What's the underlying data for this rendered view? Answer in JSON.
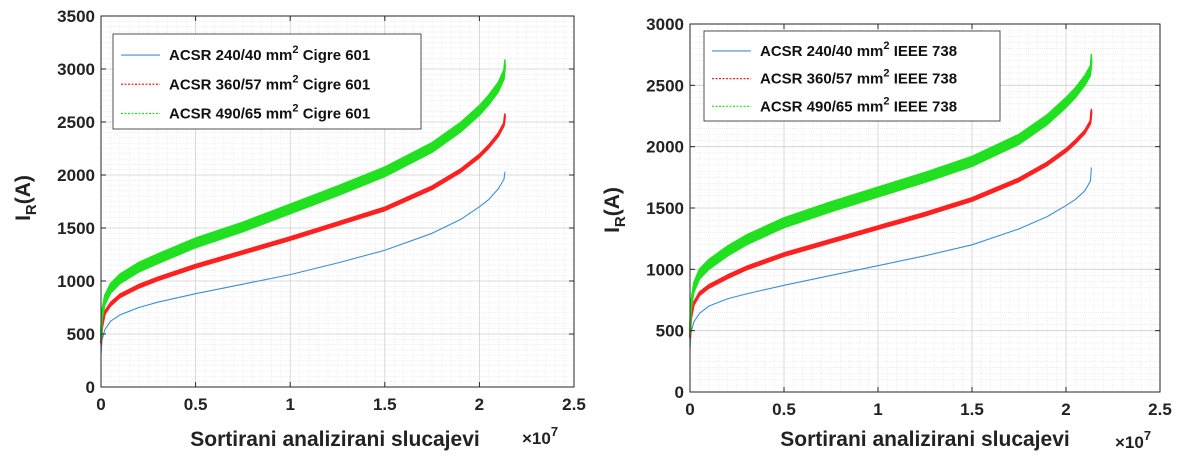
{
  "chart_data": [
    {
      "type": "line",
      "title": "",
      "xlabel": "Sortirani analizirani slucajevi",
      "ylabel": {
        "base": "I",
        "sub": "R",
        "rest": "(A)"
      },
      "x_multiplier": {
        "times": "×",
        "base": "10",
        "exp": "7"
      },
      "xlim": [
        0,
        2.5
      ],
      "ylim": [
        0,
        3500
      ],
      "xticks": [
        0,
        0.5,
        1,
        1.5,
        2,
        2.5
      ],
      "xtick_labels": [
        "0",
        "0.5",
        "1",
        "1.5",
        "2",
        "2.5"
      ],
      "yticks": [
        0,
        500,
        1000,
        1500,
        2000,
        2500,
        3000,
        3500
      ],
      "ytick_labels": [
        "0",
        "500",
        "1000",
        "1500",
        "2000",
        "2500",
        "3000",
        "3500"
      ],
      "grid": true,
      "legend_position": "top-left",
      "series": [
        {
          "name": "ACSR 240/40 mm2 Cigre 601",
          "legend": {
            "pre": "ACSR 240/40 mm",
            "sup": "2",
            "post": " Cigre 601"
          },
          "color": "#3a8fd9",
          "style": "solid",
          "band_width": 0,
          "x": [
            0,
            0.005,
            0.02,
            0.05,
            0.1,
            0.2,
            0.3,
            0.5,
            0.75,
            1.0,
            1.25,
            1.5,
            1.75,
            1.9,
            2.0,
            2.05,
            2.1,
            2.13,
            2.135
          ],
          "y": [
            300,
            440,
            540,
            620,
            680,
            750,
            800,
            880,
            970,
            1060,
            1170,
            1290,
            1450,
            1580,
            1700,
            1770,
            1870,
            1960,
            2030
          ]
        },
        {
          "name": "ACSR 360/57 mm2 Cigre 601",
          "legend": {
            "pre": "ACSR 360/57 mm",
            "sup": "2",
            "post": " Cigre 601"
          },
          "color": "#ff2020",
          "style": "dotted",
          "band_width": 16,
          "x": [
            0,
            0.005,
            0.02,
            0.05,
            0.1,
            0.2,
            0.3,
            0.5,
            0.75,
            1.0,
            1.25,
            1.5,
            1.75,
            1.9,
            2.0,
            2.05,
            2.1,
            2.13,
            2.135
          ],
          "y": [
            420,
            560,
            700,
            780,
            860,
            950,
            1020,
            1140,
            1270,
            1400,
            1540,
            1680,
            1880,
            2040,
            2180,
            2270,
            2380,
            2480,
            2560
          ]
        },
        {
          "name": "ACSR 490/65 mm2 Cigre 601",
          "legend": {
            "pre": "ACSR 490/65 mm",
            "sup": "2",
            "post": " Cigre 601"
          },
          "color": "#20e020",
          "style": "dotted",
          "band_width": 45,
          "x": [
            0,
            0.005,
            0.02,
            0.05,
            0.1,
            0.2,
            0.3,
            0.5,
            0.75,
            1.0,
            1.25,
            1.5,
            1.75,
            1.9,
            2.0,
            2.05,
            2.1,
            2.13,
            2.135
          ],
          "y": [
            480,
            680,
            820,
            930,
            1020,
            1130,
            1210,
            1360,
            1510,
            1680,
            1850,
            2030,
            2260,
            2450,
            2610,
            2710,
            2830,
            2950,
            3040
          ]
        }
      ]
    },
    {
      "type": "line",
      "title": "",
      "xlabel": "Sortirani analizirani slucajevi",
      "ylabel": {
        "base": "I",
        "sub": "R",
        "rest": "(A)"
      },
      "x_multiplier": {
        "times": "×",
        "base": "10",
        "exp": "7"
      },
      "xlim": [
        0,
        2.5
      ],
      "ylim": [
        0,
        3000
      ],
      "xticks": [
        0,
        0.5,
        1,
        1.5,
        2,
        2.5
      ],
      "xtick_labels": [
        "0",
        "0.5",
        "1",
        "1.5",
        "2",
        "2.5"
      ],
      "yticks": [
        0,
        500,
        1000,
        1500,
        2000,
        2500,
        3000
      ],
      "ytick_labels": [
        "0",
        "500",
        "1000",
        "1500",
        "2000",
        "2500",
        "3000"
      ],
      "grid": true,
      "legend_position": "top-left",
      "series": [
        {
          "name": "ACSR 240/40 mm2 IEEE 738",
          "legend": {
            "pre": "ACSR 240/40 mm",
            "sup": "2",
            "post": " IEEE 738"
          },
          "color": "#3a8fd9",
          "style": "solid",
          "band_width": 0,
          "x": [
            0,
            0.005,
            0.02,
            0.05,
            0.1,
            0.2,
            0.3,
            0.5,
            0.75,
            1.0,
            1.25,
            1.5,
            1.75,
            1.9,
            2.0,
            2.05,
            2.1,
            2.13,
            2.135
          ],
          "y": [
            350,
            480,
            570,
            640,
            700,
            760,
            800,
            870,
            950,
            1030,
            1110,
            1200,
            1330,
            1430,
            1520,
            1570,
            1640,
            1720,
            1830
          ]
        },
        {
          "name": "ACSR 360/57 mm2 IEEE 738",
          "legend": {
            "pre": "ACSR 360/57 mm",
            "sup": "2",
            "post": " IEEE 738"
          },
          "color": "#ff2020",
          "style": "dotted",
          "band_width": 14,
          "x": [
            0,
            0.005,
            0.02,
            0.05,
            0.1,
            0.2,
            0.3,
            0.5,
            0.75,
            1.0,
            1.25,
            1.5,
            1.75,
            1.9,
            2.0,
            2.05,
            2.1,
            2.13,
            2.135
          ],
          "y": [
            450,
            600,
            720,
            800,
            860,
            940,
            1010,
            1120,
            1230,
            1340,
            1450,
            1570,
            1730,
            1860,
            1970,
            2040,
            2120,
            2200,
            2290
          ]
        },
        {
          "name": "ACSR 490/65 mm2 IEEE 738",
          "legend": {
            "pre": "ACSR 490/65 mm",
            "sup": "2",
            "post": " IEEE 738"
          },
          "color": "#20e020",
          "style": "dotted",
          "band_width": 40,
          "x": [
            0,
            0.005,
            0.02,
            0.05,
            0.1,
            0.2,
            0.3,
            0.5,
            0.75,
            1.0,
            1.25,
            1.5,
            1.75,
            1.9,
            2.0,
            2.05,
            2.1,
            2.13,
            2.135
          ],
          "y": [
            500,
            700,
            850,
            960,
            1040,
            1150,
            1240,
            1380,
            1510,
            1630,
            1750,
            1880,
            2060,
            2220,
            2360,
            2440,
            2540,
            2620,
            2710
          ]
        }
      ]
    }
  ]
}
